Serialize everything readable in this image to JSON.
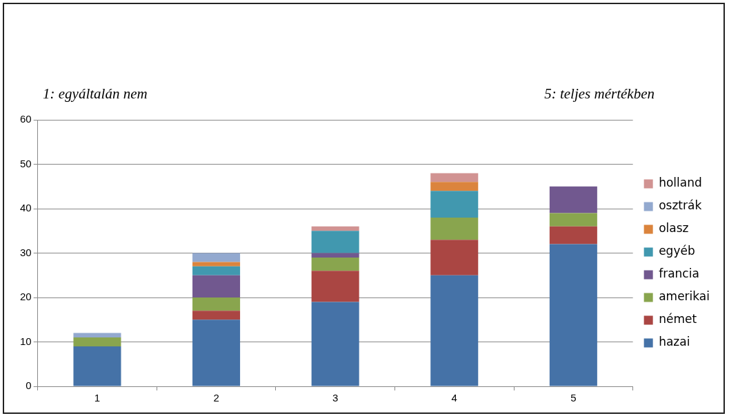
{
  "chart_data": {
    "type": "bar",
    "stacked": true,
    "categories": [
      "1",
      "2",
      "3",
      "4",
      "5"
    ],
    "series": [
      {
        "name": "hazai",
        "color": "#4572a7",
        "values": [
          9,
          15,
          19,
          25,
          32
        ]
      },
      {
        "name": "német",
        "color": "#aa4643",
        "values": [
          0,
          2,
          7,
          8,
          4
        ]
      },
      {
        "name": "amerikai",
        "color": "#89a54e",
        "values": [
          2,
          3,
          3,
          5,
          3
        ]
      },
      {
        "name": "francia",
        "color": "#71588f",
        "values": [
          0,
          5,
          1,
          0,
          6
        ]
      },
      {
        "name": "egyéb",
        "color": "#4198af",
        "values": [
          0,
          2,
          5,
          6,
          0
        ]
      },
      {
        "name": "olasz",
        "color": "#db843d",
        "values": [
          0,
          1,
          0,
          2,
          0
        ]
      },
      {
        "name": "osztrák",
        "color": "#93a9cf",
        "values": [
          1,
          2,
          0,
          0,
          0
        ]
      },
      {
        "name": "holland",
        "color": "#d19392",
        "values": [
          0,
          0,
          1,
          2,
          0
        ]
      }
    ],
    "ylim": [
      0,
      60
    ],
    "yticks": [
      0,
      10,
      20,
      30,
      40,
      50,
      60
    ],
    "grid": "y",
    "legend": "right",
    "annotations": [
      "1: egyáltalán nem",
      "5: teljes mértékben"
    ]
  }
}
